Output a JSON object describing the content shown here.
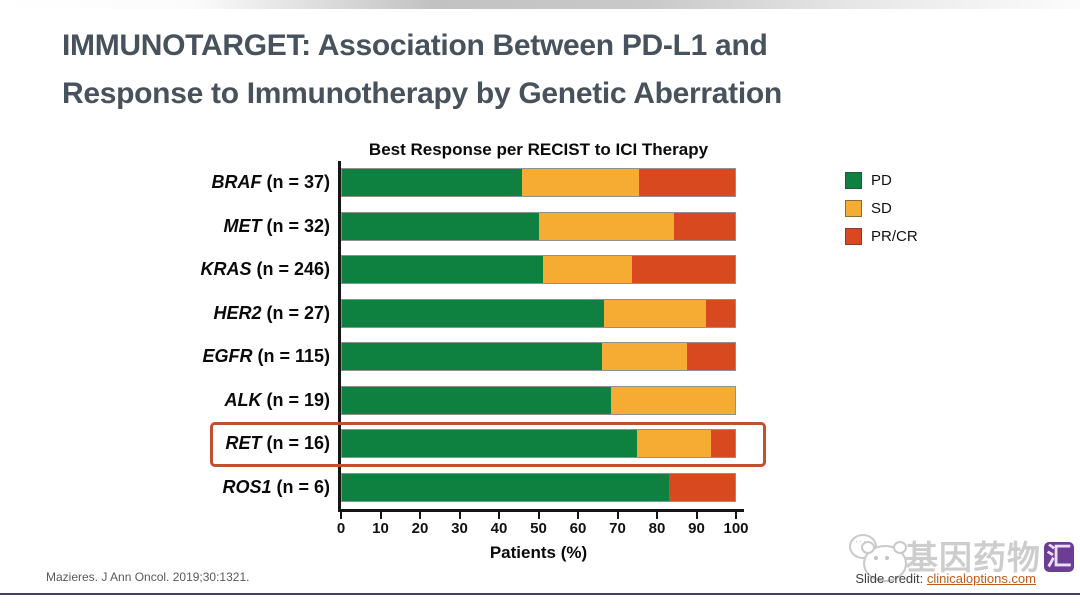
{
  "slide": {
    "title_line1": "IMMUNOTARGET: Association Between PD-L1 and",
    "title_line2": "Response to Immunotherapy by Genetic Aberration",
    "reference": "Mazieres. J Ann Oncol. 2019;30:1321.",
    "credit_label": "Slide credit: ",
    "credit_link": "clinicaloptions.com",
    "watermark_text": "基因药物",
    "watermark_badge": "汇",
    "title_color": "#47525c",
    "bottom_rule_color": "#45405e"
  },
  "chart_data": {
    "type": "bar",
    "orientation": "horizontal",
    "stacked": true,
    "title": "Best Response per RECIST to ICI Therapy",
    "xlabel": "Patients (%)",
    "ylabel": "",
    "xlim": [
      0,
      100
    ],
    "xticks": [
      0,
      10,
      20,
      30,
      40,
      50,
      60,
      70,
      80,
      90,
      100
    ],
    "grid": false,
    "legend_position": "right",
    "categories": [
      {
        "gene": "BRAF",
        "n_label": "(n = 37)"
      },
      {
        "gene": "MET",
        "n_label": "(n = 32)"
      },
      {
        "gene": "KRAS",
        "n_label": "(n = 246)"
      },
      {
        "gene": "HER2",
        "n_label": "(n = 27)"
      },
      {
        "gene": "EGFR",
        "n_label": "(n = 115)"
      },
      {
        "gene": "ALK",
        "n_label": "(n = 19)"
      },
      {
        "gene": "RET",
        "n_label": "(n = 16)"
      },
      {
        "gene": "ROS1",
        "n_label": "(n = 6)"
      }
    ],
    "series": [
      {
        "name": "PD",
        "color": "#0e8040",
        "values": [
          45.9,
          50.0,
          51.2,
          66.7,
          66.1,
          68.4,
          75.0,
          83.3
        ]
      },
      {
        "name": "SD",
        "color": "#f6ac32",
        "values": [
          29.7,
          34.4,
          22.6,
          25.9,
          21.7,
          31.6,
          18.8,
          0
        ]
      },
      {
        "name": "PR/CR",
        "color": "#d8491f",
        "values": [
          24.4,
          15.6,
          26.2,
          7.4,
          12.2,
          0,
          6.2,
          16.7
        ]
      }
    ],
    "highlighted_category": "RET",
    "highlight_color": "#c0512c"
  }
}
